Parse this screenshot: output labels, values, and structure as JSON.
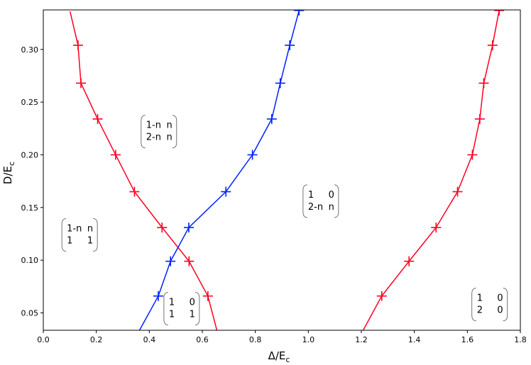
{
  "chart_data": {
    "type": "line",
    "xlabel": "Δ/E",
    "xlabel_sub": "c",
    "ylabel": "D/E",
    "ylabel_sub": "c",
    "xlim": [
      0.0,
      1.8
    ],
    "ylim": [
      0.0335,
      0.3375
    ],
    "xticks": [
      "0.0",
      "0.2",
      "0.4",
      "0.6",
      "0.8",
      "1.0",
      "1.2",
      "1.4",
      "1.6",
      "1.8"
    ],
    "xtick_values": [
      0.0,
      0.2,
      0.4,
      0.6,
      0.8,
      1.0,
      1.2,
      1.4,
      1.6,
      1.8
    ],
    "yticks": [
      "0.05",
      "0.10",
      "0.15",
      "0.20",
      "0.25",
      "0.30"
    ],
    "ytick_values": [
      0.05,
      0.1,
      0.15,
      0.2,
      0.25,
      0.3
    ],
    "grid": false,
    "series": [
      {
        "color": "#ff0022",
        "marker": "+",
        "x": [
          0.101,
          0.131,
          0.142,
          0.205,
          0.273,
          0.344,
          0.448,
          0.55,
          0.621,
          0.655
        ],
        "y": [
          0.336,
          0.304,
          0.268,
          0.234,
          0.2,
          0.165,
          0.131,
          0.099,
          0.066,
          0.0335
        ],
        "markers": [
          false,
          true,
          true,
          true,
          true,
          true,
          true,
          true,
          true,
          false
        ]
      },
      {
        "color": "#0022ff",
        "marker": "+",
        "x": [
          0.363,
          0.434,
          0.48,
          0.549,
          0.689,
          0.789,
          0.862,
          0.894,
          0.93,
          0.965
        ],
        "y": [
          0.0335,
          0.066,
          0.099,
          0.131,
          0.165,
          0.2,
          0.234,
          0.268,
          0.304,
          0.337
        ],
        "markers": [
          false,
          true,
          true,
          true,
          true,
          true,
          true,
          true,
          true,
          true
        ]
      },
      {
        "color": "#ff0022",
        "marker": "+",
        "x": [
          1.207,
          1.277,
          1.38,
          1.482,
          1.563,
          1.619,
          1.647,
          1.662,
          1.695,
          1.72
        ],
        "y": [
          0.0335,
          0.066,
          0.099,
          0.131,
          0.165,
          0.2,
          0.234,
          0.268,
          0.304,
          0.337
        ],
        "markers": [
          false,
          true,
          true,
          true,
          true,
          true,
          true,
          true,
          true,
          true
        ]
      }
    ],
    "annotations": [
      {
        "x": 0.436,
        "y": 0.222,
        "rows": [
          [
            "1-n",
            "n"
          ],
          [
            "2-n",
            "n"
          ]
        ]
      },
      {
        "x": 1.047,
        "y": 0.156,
        "rows": [
          [
            "1",
            "0"
          ],
          [
            "2-n",
            "n"
          ]
        ]
      },
      {
        "x": 0.137,
        "y": 0.124,
        "rows": [
          [
            "1-n",
            "n"
          ],
          [
            "1",
            "1"
          ]
        ]
      },
      {
        "x": 1.684,
        "y": 0.058,
        "rows": [
          [
            "1",
            "0"
          ],
          [
            "2",
            "0"
          ]
        ]
      },
      {
        "x": 0.522,
        "y": 0.054,
        "rows": [
          [
            "1",
            "0"
          ],
          [
            "1",
            "1"
          ]
        ]
      }
    ]
  }
}
